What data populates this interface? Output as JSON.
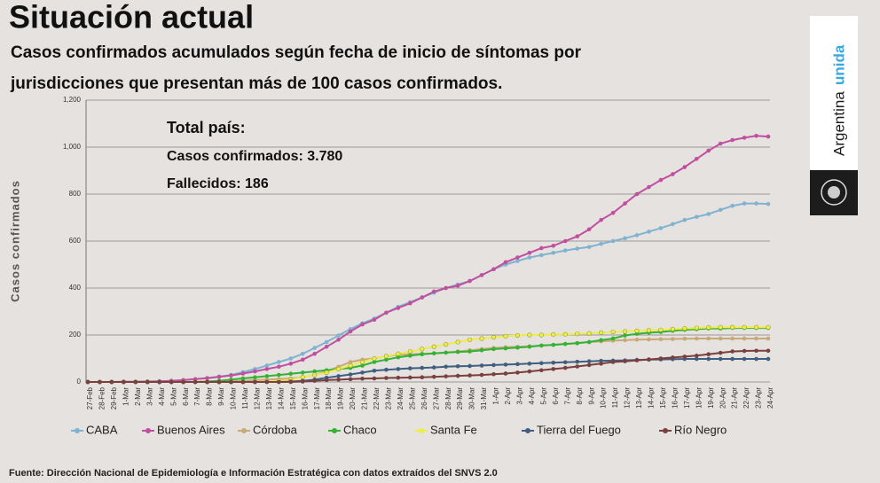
{
  "chart_data": {
    "type": "line",
    "title": "Situación actual",
    "subtitle": [
      "Casos confirmados acumulados según fecha de inicio de síntomas por",
      "jurisdicciones que presentan más de 100 casos confirmados."
    ],
    "annotations": [
      "Total país:",
      "Casos confirmados: 3.780",
      "Fallecidos: 186"
    ],
    "y_label": "Casos confirmados",
    "source": "Fuente: Dirección Nacional de Epidemiología e Información Estratégica con datos extraídos del SNVS 2.0",
    "categories": [
      "27-Feb",
      "28-Feb",
      "29-Feb",
      "1-Mar",
      "2-Mar",
      "3-Mar",
      "4-Mar",
      "5-Mar",
      "6-Mar",
      "7-Mar",
      "8-Mar",
      "9-Mar",
      "10-Mar",
      "11-Mar",
      "12-Mar",
      "13-Mar",
      "14-Mar",
      "15-Mar",
      "16-Mar",
      "17-Mar",
      "18-Mar",
      "19-Mar",
      "20-Mar",
      "21-Mar",
      "22-Mar",
      "23-Mar",
      "24-Mar",
      "25-Mar",
      "26-Mar",
      "27-Mar",
      "28-Mar",
      "29-Mar",
      "30-Mar",
      "31-Mar",
      "1-Apr",
      "2-Apr",
      "3-Apr",
      "4-Apr",
      "5-Apr",
      "6-Apr",
      "7-Apr",
      "8-Apr",
      "9-Apr",
      "10-Apr",
      "11-Apr",
      "12-Apr",
      "13-Apr",
      "14-Apr",
      "15-Apr",
      "16-Apr",
      "17-Apr",
      "18-Apr",
      "19-Apr",
      "20-Apr",
      "21-Apr",
      "22-Apr",
      "23-Apr",
      "24-Apr"
    ],
    "ylim": [
      0,
      1200
    ],
    "yticks": [
      0,
      200,
      400,
      600,
      800,
      {
        "value": 1000,
        "label": "1,000"
      },
      {
        "value": 1200,
        "label": "1,200"
      }
    ],
    "grid": true,
    "series": [
      {
        "name": "CABA",
        "color": "#7fb3d0",
        "values": [
          0,
          0,
          0,
          1,
          1,
          2,
          3,
          5,
          8,
          12,
          17,
          23,
          30,
          42,
          55,
          70,
          85,
          100,
          120,
          145,
          170,
          198,
          225,
          250,
          270,
          295,
          320,
          340,
          360,
          380,
          400,
          415,
          430,
          455,
          480,
          500,
          515,
          530,
          540,
          550,
          560,
          568,
          575,
          588,
          600,
          612,
          625,
          640,
          655,
          672,
          690,
          703,
          715,
          733,
          750,
          760,
          760,
          758
        ]
      },
      {
        "name": "Buenos Aires",
        "color": "#c0509f",
        "values": [
          0,
          0,
          0,
          1,
          1,
          2,
          3,
          5,
          8,
          12,
          16,
          22,
          28,
          36,
          45,
          55,
          65,
          78,
          95,
          120,
          150,
          180,
          215,
          245,
          265,
          295,
          315,
          335,
          360,
          385,
          400,
          410,
          430,
          455,
          480,
          510,
          530,
          550,
          570,
          580,
          600,
          620,
          650,
          690,
          720,
          760,
          800,
          830,
          860,
          885,
          915,
          950,
          985,
          1015,
          1030,
          1040,
          1048,
          1045
        ]
      },
      {
        "name": "Córdoba",
        "color": "#c8aa78",
        "values": [
          0,
          0,
          0,
          0,
          0,
          0,
          0,
          0,
          0,
          0,
          1,
          2,
          3,
          5,
          8,
          10,
          12,
          15,
          20,
          30,
          45,
          65,
          85,
          95,
          100,
          110,
          115,
          118,
          120,
          122,
          125,
          130,
          135,
          140,
          145,
          148,
          150,
          152,
          155,
          158,
          162,
          166,
          170,
          173,
          176,
          178,
          180,
          181,
          182,
          183,
          184,
          185,
          185,
          185,
          185,
          185,
          185,
          185
        ]
      },
      {
        "name": "Chaco",
        "color": "#33b233",
        "values": [
          0,
          0,
          0,
          0,
          0,
          0,
          0,
          0,
          0,
          0,
          2,
          5,
          10,
          15,
          20,
          25,
          30,
          35,
          40,
          45,
          50,
          55,
          60,
          70,
          85,
          95,
          105,
          112,
          118,
          122,
          125,
          128,
          130,
          135,
          140,
          143,
          146,
          150,
          155,
          158,
          162,
          165,
          170,
          178,
          185,
          198,
          205,
          210,
          213,
          218,
          222,
          225,
          228,
          228,
          230,
          230,
          230,
          230
        ]
      },
      {
        "name": "Santa Fe",
        "color": "#eded4a",
        "values": [
          0,
          0,
          0,
          0,
          0,
          0,
          0,
          0,
          0,
          0,
          0,
          0,
          0,
          0,
          0,
          2,
          5,
          10,
          20,
          30,
          40,
          55,
          70,
          85,
          100,
          110,
          120,
          130,
          140,
          150,
          160,
          170,
          180,
          185,
          190,
          195,
          198,
          200,
          200,
          202,
          203,
          205,
          207,
          210,
          213,
          215,
          218,
          220,
          222,
          225,
          228,
          230,
          232,
          233,
          233,
          233,
          233,
          233
        ]
      },
      {
        "name": "Tierra del Fuego",
        "color": "#3f5f80",
        "values": [
          0,
          0,
          0,
          0,
          0,
          0,
          0,
          0,
          0,
          0,
          0,
          0,
          0,
          0,
          0,
          0,
          0,
          2,
          5,
          10,
          18,
          25,
          32,
          40,
          48,
          52,
          55,
          58,
          60,
          62,
          65,
          67,
          68,
          70,
          72,
          74,
          76,
          78,
          80,
          82,
          84,
          86,
          88,
          90,
          91,
          92,
          94,
          95,
          96,
          97,
          98,
          98,
          98,
          98,
          98,
          98,
          98,
          98
        ]
      },
      {
        "name": "Río Negro",
        "color": "#7a3f3f",
        "values": [
          0,
          0,
          0,
          0,
          0,
          0,
          0,
          0,
          0,
          0,
          0,
          0,
          0,
          0,
          0,
          0,
          0,
          0,
          2,
          5,
          8,
          10,
          12,
          14,
          15,
          17,
          18,
          19,
          20,
          22,
          24,
          26,
          28,
          30,
          33,
          36,
          40,
          45,
          50,
          55,
          60,
          66,
          72,
          78,
          85,
          88,
          92,
          96,
          100,
          104,
          108,
          112,
          118,
          124,
          130,
          132,
          133,
          133
        ]
      }
    ]
  },
  "logo": {
    "word1": "Argentina",
    "word2": "unida"
  }
}
